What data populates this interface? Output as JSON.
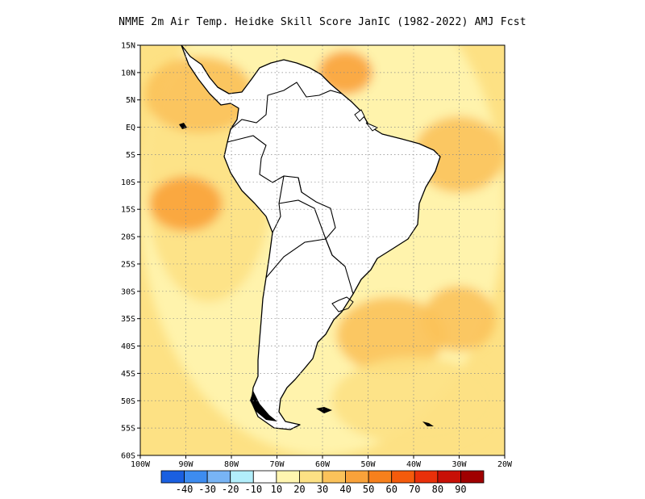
{
  "title": "NMME  2m Air Temp. Heidke Skill Score JanIC (1982-2022) AMJ Fcst",
  "map": {
    "lon_range": [
      -100,
      -20
    ],
    "lat_range": [
      -60,
      15
    ],
    "lat_ticks": [
      {
        "value": 15,
        "label": "15N"
      },
      {
        "value": 10,
        "label": "10N"
      },
      {
        "value": 5,
        "label": "5N"
      },
      {
        "value": 0,
        "label": "EQ"
      },
      {
        "value": -5,
        "label": "5S"
      },
      {
        "value": -10,
        "label": "10S"
      },
      {
        "value": -15,
        "label": "15S"
      },
      {
        "value": -20,
        "label": "20S"
      },
      {
        "value": -25,
        "label": "25S"
      },
      {
        "value": -30,
        "label": "30S"
      },
      {
        "value": -35,
        "label": "35S"
      },
      {
        "value": -40,
        "label": "40S"
      },
      {
        "value": -45,
        "label": "45S"
      },
      {
        "value": -50,
        "label": "50S"
      },
      {
        "value": -55,
        "label": "55S"
      },
      {
        "value": -60,
        "label": "60S"
      }
    ],
    "lon_ticks": [
      {
        "value": -100,
        "label": "100W"
      },
      {
        "value": -90,
        "label": "90W"
      },
      {
        "value": -80,
        "label": "80W"
      },
      {
        "value": -70,
        "label": "70W"
      },
      {
        "value": -60,
        "label": "60W"
      },
      {
        "value": -50,
        "label": "50W"
      },
      {
        "value": -40,
        "label": "40W"
      },
      {
        "value": -30,
        "label": "30W"
      },
      {
        "value": -20,
        "label": "20W"
      }
    ],
    "grid": true,
    "land_color": "#ffffff",
    "coast_color": "#000000",
    "shading": [
      {
        "category": "10-20",
        "color": "#fff5b0",
        "lon": -60,
        "lat": -15,
        "rx": 40,
        "ry": 45
      },
      {
        "category": "20-30",
        "color": "#fde184",
        "lon": -85,
        "lat": -10,
        "rx": 14,
        "ry": 22
      },
      {
        "category": "30-40",
        "color": "#fbc25a",
        "lon": -87,
        "lat": 6,
        "rx": 12,
        "ry": 7
      },
      {
        "category": "40-50",
        "color": "#f9a23a",
        "lon": -90,
        "lat": -14,
        "rx": 8,
        "ry": 5
      },
      {
        "category": "40-50",
        "color": "#f9a23a",
        "lon": -55,
        "lat": 10,
        "rx": 6,
        "ry": 4
      },
      {
        "category": "30-40",
        "color": "#fbc25a",
        "lon": -45,
        "lat": -38,
        "rx": 12,
        "ry": 7
      },
      {
        "category": "30-40",
        "color": "#fbc25a",
        "lon": -30,
        "lat": -5,
        "rx": 10,
        "ry": 7
      },
      {
        "category": "20-30",
        "color": "#fde184",
        "lon": -40,
        "lat": -50,
        "rx": 18,
        "ry": 8
      },
      {
        "category": "30-40",
        "color": "#fbc25a",
        "lon": -30,
        "lat": -35,
        "rx": 8,
        "ry": 6
      }
    ]
  },
  "colorbar": {
    "colors": [
      "#1a5fe0",
      "#3d8cf0",
      "#78b4f5",
      "#b2eefb",
      "#ffffff",
      "#fff5b0",
      "#fde184",
      "#fbc25a",
      "#f9a23a",
      "#f7801c",
      "#f45b0c",
      "#e9300a",
      "#c81006",
      "#a00000"
    ],
    "labels": [
      "-40",
      "-30",
      "-20",
      "-10",
      "10",
      "20",
      "30",
      "40",
      "50",
      "60",
      "70",
      "80",
      "90"
    ]
  }
}
